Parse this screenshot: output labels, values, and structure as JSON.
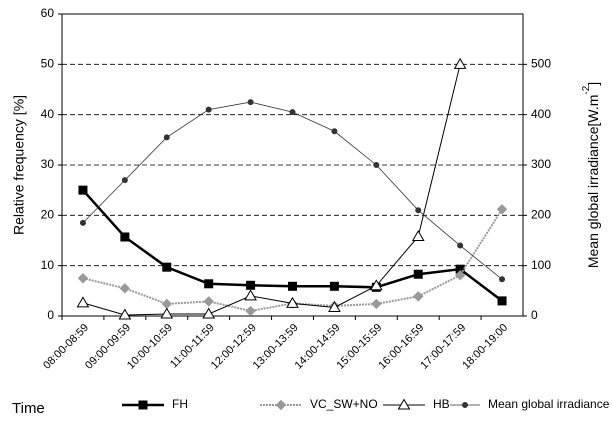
{
  "chart_data": {
    "type": "line",
    "x_label": "Time",
    "y_label": "Relative frequency [%]",
    "y2_label": [
      "Mean global irradiance[W.m",
      "-2",
      "]"
    ],
    "categories": [
      "08:00-08:59",
      "09:00-09:59",
      "10:00-10:59",
      "11:00-11:59",
      "12:00-12:59",
      "13:00-13:59",
      "14:00-14:59",
      "15:00-15:59",
      "16:00-16:59",
      "17:00-17:59",
      "18:00-19:00"
    ],
    "series": [
      {
        "name": "FH",
        "color": "#000000",
        "marker": "square",
        "values": [
          25,
          15.7,
          9.7,
          6.4,
          6.1,
          5.9,
          5.9,
          5.7,
          8.3,
          9.3,
          3.0
        ]
      },
      {
        "name": "VC_SW+NO",
        "color": "#999999",
        "marker": "diamond",
        "values": [
          7.5,
          5.5,
          2.4,
          2.9,
          1.0,
          2.5,
          2.0,
          2.4,
          3.9,
          8.1,
          21.2
        ]
      },
      {
        "name": "HB",
        "color": "#000000",
        "marker": "triangle",
        "values": [
          2.6,
          0.2,
          0.4,
          0.4,
          4.0,
          2.5,
          1.7,
          6.0,
          15.8,
          50,
          null
        ]
      },
      {
        "name": "Mean global irradiance",
        "color": "#333333",
        "marker": "circle",
        "axis": "y2",
        "values": [
          185,
          270,
          355,
          410,
          425,
          405,
          367,
          300,
          210,
          140,
          73
        ]
      }
    ],
    "ylim": [
      0,
      60
    ],
    "yticks": [
      0,
      10,
      20,
      30,
      40,
      50,
      60
    ],
    "y2lim": [
      0,
      600
    ],
    "y2ticks": [
      0,
      100,
      200,
      300,
      400,
      500
    ],
    "grid": true
  }
}
